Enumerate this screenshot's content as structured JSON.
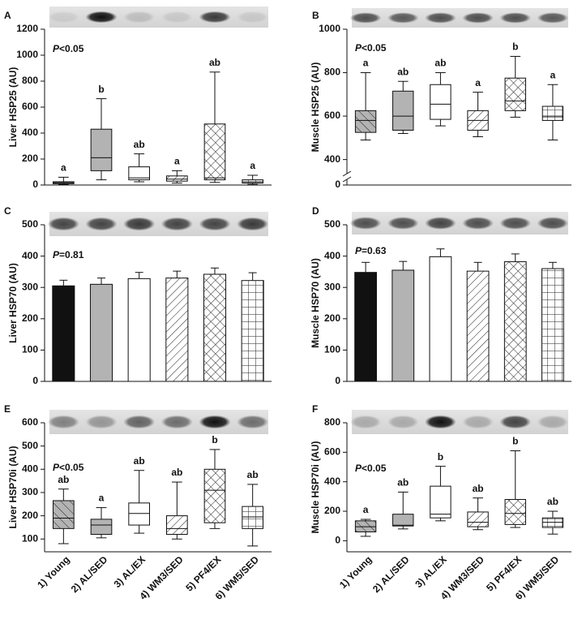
{
  "chart_data": [
    {
      "type": "box",
      "panel": "A",
      "ylabel": "Liver HSP25 (AU)",
      "p_symbol": "P",
      "p_text": "<0.05",
      "min": [
        5,
        40,
        25,
        15,
        20,
        5
      ],
      "q1": [
        10,
        110,
        40,
        30,
        40,
        15
      ],
      "median": [
        18,
        210,
        55,
        45,
        55,
        25
      ],
      "q3": [
        25,
        430,
        140,
        70,
        470,
        40
      ],
      "max": [
        60,
        665,
        240,
        110,
        870,
        75
      ],
      "letters": [
        "a",
        "b",
        "ab",
        "a",
        "ab",
        "a"
      ],
      "fills": [
        "hatch-gray",
        "gray",
        "white",
        "hatch",
        "cross",
        "grid"
      ],
      "ylim": [
        0,
        1200
      ],
      "yticks": [
        0,
        200,
        400,
        600,
        800,
        1000,
        1200
      ]
    },
    {
      "type": "box",
      "panel": "B",
      "ylabel": "Muscle HSP25 (AU)",
      "p_symbol": "P",
      "p_text": "<0.05",
      "min": [
        490,
        520,
        555,
        505,
        595,
        490
      ],
      "q1": [
        525,
        535,
        585,
        535,
        625,
        580
      ],
      "median": [
        580,
        600,
        655,
        580,
        670,
        600
      ],
      "q3": [
        625,
        715,
        745,
        625,
        775,
        645
      ],
      "max": [
        800,
        760,
        800,
        710,
        875,
        745
      ],
      "letters": [
        "a",
        "ab",
        "ab",
        "a",
        "b",
        "a"
      ],
      "fills": [
        "hatch-gray",
        "gray",
        "white",
        "hatch",
        "cross",
        "grid"
      ],
      "ylim": [
        0,
        1000
      ],
      "axis_break": [
        0,
        350
      ],
      "yticks": [
        0,
        400,
        600,
        800,
        1000
      ]
    },
    {
      "type": "bar",
      "panel": "C",
      "ylabel": "Liver HSP70 (AU)",
      "p_symbol": "P",
      "p_text": "=0.81",
      "values": [
        305,
        310,
        328,
        330,
        342,
        322
      ],
      "errors": [
        18,
        20,
        20,
        22,
        20,
        25
      ],
      "fills": [
        "black",
        "gray",
        "white",
        "hatch",
        "cross",
        "grid"
      ],
      "ylim": [
        0,
        500
      ],
      "yticks": [
        0,
        100,
        200,
        300,
        400,
        500
      ]
    },
    {
      "type": "bar",
      "panel": "D",
      "ylabel": "Muscle HSP70 (AU)",
      "p_symbol": "P",
      "p_text": "=0.63",
      "values": [
        348,
        355,
        398,
        352,
        382,
        360
      ],
      "errors": [
        32,
        28,
        25,
        28,
        25,
        20
      ],
      "fills": [
        "black",
        "gray",
        "white",
        "hatch",
        "cross",
        "grid"
      ],
      "ylim": [
        0,
        500
      ],
      "yticks": [
        0,
        100,
        200,
        300,
        400,
        500
      ]
    },
    {
      "type": "box",
      "panel": "E",
      "ylabel": "Liver HSP70i (AU)",
      "p_symbol": "P",
      "p_text": "<0.05",
      "categories": [
        "1) Young",
        "2) AL/SED",
        "3) AL/EX",
        "4) WM3/SED",
        "5) PF4/EX",
        "6) WM5/SED"
      ],
      "min": [
        80,
        105,
        125,
        100,
        145,
        70
      ],
      "q1": [
        145,
        120,
        160,
        120,
        170,
        145
      ],
      "median": [
        190,
        160,
        210,
        145,
        310,
        195
      ],
      "q3": [
        265,
        185,
        255,
        200,
        400,
        240
      ],
      "max": [
        315,
        235,
        395,
        345,
        485,
        335
      ],
      "letters": [
        "ab",
        "a",
        "ab",
        "ab",
        "b",
        "ab"
      ],
      "fills": [
        "hatch-gray",
        "gray",
        "white",
        "hatch",
        "cross",
        "grid"
      ],
      "ylim": [
        45,
        600
      ],
      "yticks": [
        100,
        200,
        300,
        400,
        500,
        600
      ]
    },
    {
      "type": "box",
      "panel": "F",
      "ylabel": "Muscle HSP70i (AU)",
      "p_symbol": "P",
      "p_text": "<0.05",
      "categories": [
        "1) Young",
        "2) AL/SED",
        "3) AL/EX",
        "4) WM3/SED",
        "5) PF4/EX",
        "6) WM5/SED"
      ],
      "min": [
        30,
        80,
        135,
        75,
        90,
        45
      ],
      "q1": [
        60,
        100,
        155,
        95,
        110,
        90
      ],
      "median": [
        95,
        105,
        180,
        125,
        185,
        125
      ],
      "q3": [
        135,
        180,
        370,
        195,
        280,
        155
      ],
      "max": [
        145,
        330,
        505,
        290,
        610,
        200
      ],
      "letters": [
        "a",
        "ab",
        "b",
        "ab",
        "b",
        "ab"
      ],
      "fills": [
        "hatch-gray",
        "gray",
        "white",
        "hatch",
        "cross",
        "grid"
      ],
      "ylim": [
        -75,
        800
      ],
      "yticks": [
        0,
        200,
        400,
        600,
        800
      ]
    }
  ]
}
